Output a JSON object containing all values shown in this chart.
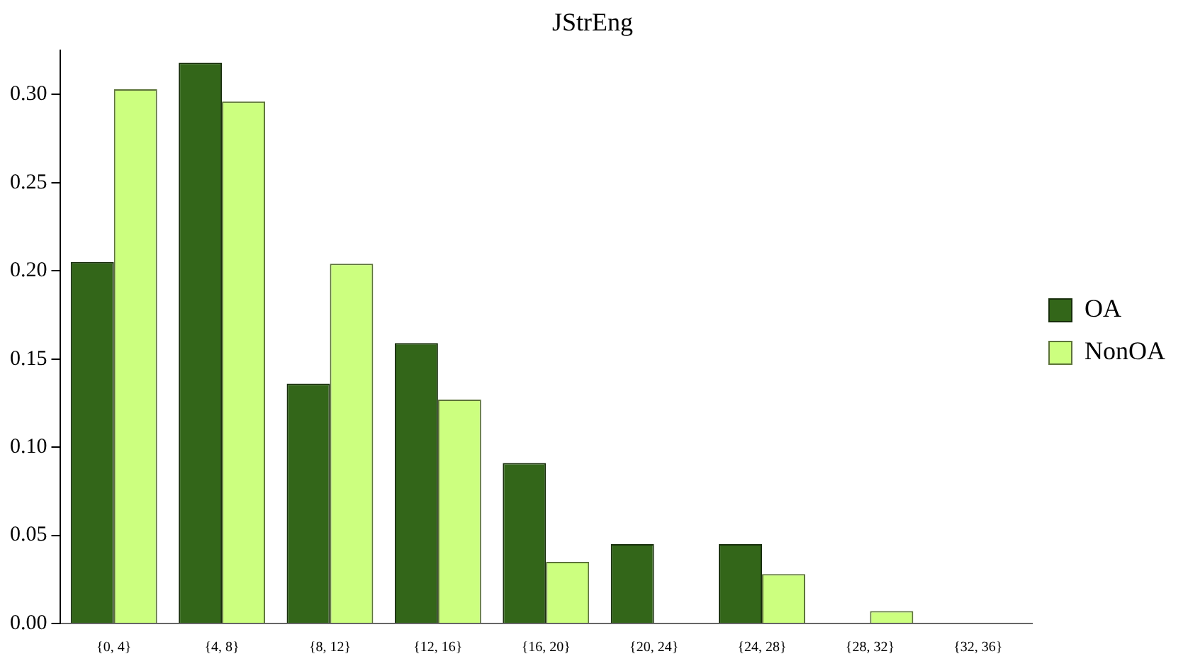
{
  "chart_data": {
    "type": "bar",
    "title": "JStrEng",
    "categories": [
      "{0, 4}",
      "{4, 8}",
      "{8, 12}",
      "{12, 16}",
      "{16, 20}",
      "{20, 24}",
      "{24, 28}",
      "{28, 32}",
      "{32, 36}"
    ],
    "series": [
      {
        "name": "OA",
        "color": "#336619",
        "values": [
          0.205,
          0.318,
          0.136,
          0.159,
          0.091,
          0.045,
          0.045,
          0,
          0
        ]
      },
      {
        "name": "NonOA",
        "color": "#ccff7f",
        "values": [
          0.303,
          0.296,
          0.204,
          0.127,
          0.035,
          0,
          0.028,
          0.007,
          0
        ]
      }
    ],
    "ylim": [
      0,
      0.325
    ],
    "yticks": [
      {
        "value": 0,
        "label": "0.00"
      },
      {
        "value": 0.05,
        "label": "0.05"
      },
      {
        "value": 0.1,
        "label": "0.10"
      },
      {
        "value": 0.15,
        "label": "0.15"
      },
      {
        "value": 0.2,
        "label": "0.20"
      },
      {
        "value": 0.25,
        "label": "0.25"
      },
      {
        "value": 0.3,
        "label": "0.30"
      }
    ],
    "grid": false,
    "legend": "right"
  }
}
